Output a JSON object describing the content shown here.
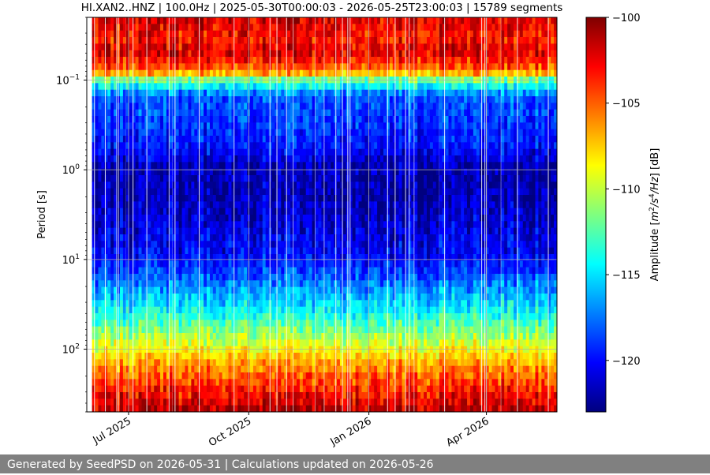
{
  "chart_data": {
    "type": "heatmap",
    "title": "HI.XAN2..HNZ | 100.0Hz | 2025-05-30T00:00:03 - 2026-05-25T23:00:03 | 15789 segments",
    "xlabel": "",
    "ylabel": "Period [s]",
    "x_tick_labels": [
      "Jul 2025",
      "Oct 2025",
      "Jan 2026",
      "Apr 2026"
    ],
    "x_tick_dates": [
      "2025-07-01",
      "2025-10-01",
      "2026-01-01",
      "2026-04-01"
    ],
    "x_range": [
      "2025-05-30",
      "2026-05-25"
    ],
    "y_scale": "log",
    "y_inverted": true,
    "y_range": [
      0.02,
      500
    ],
    "y_ticks": [
      0.1,
      1,
      10,
      100
    ],
    "y_tick_labels": [
      "10^-1",
      "10^0",
      "10^1",
      "10^2"
    ],
    "grid": true,
    "colormap": "jet",
    "colorbar": {
      "label": "Amplitude [m^2/s^4/Hz] [dB]",
      "range": [
        -123,
        -100
      ],
      "ticks": [
        -100,
        -105,
        -110,
        -115,
        -120
      ]
    },
    "amplitude_profile_db": [
      {
        "period": 0.02,
        "value": -102
      },
      {
        "period": 0.035,
        "value": -103
      },
      {
        "period": 0.05,
        "value": -102
      },
      {
        "period": 0.08,
        "value": -105
      },
      {
        "period": 0.1,
        "value": -112
      },
      {
        "period": 0.15,
        "value": -118
      },
      {
        "period": 0.3,
        "value": -119
      },
      {
        "period": 0.6,
        "value": -120
      },
      {
        "period": 0.9,
        "value": -122
      },
      {
        "period": 2,
        "value": -122
      },
      {
        "period": 5,
        "value": -121
      },
      {
        "period": 10,
        "value": -120
      },
      {
        "period": 20,
        "value": -117
      },
      {
        "period": 40,
        "value": -114
      },
      {
        "period": 80,
        "value": -110
      },
      {
        "period": 150,
        "value": -106
      },
      {
        "period": 300,
        "value": -103
      },
      {
        "period": 500,
        "value": -101
      }
    ]
  },
  "footer_text": "Generated by SeedPSD on 2026-05-31 | Calculations updated on 2026-05-26"
}
